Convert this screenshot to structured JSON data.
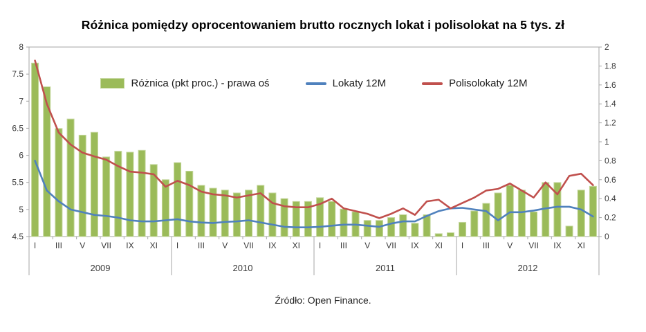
{
  "source": "Źródło: Open Finance.",
  "colors": {
    "bar_fill": "#9BBB59",
    "bar_stroke": "#C3D69B",
    "line_deposits": "#4F81BD",
    "line_policy": "#C0504D",
    "axis_line": "#A6A6A6",
    "text": "#3a3a3a"
  },
  "chart_data": {
    "type": "bar",
    "title": "Różnica pomiędzy oprocentowaniem brutto rocznych lokat i polisolokat na 5 tys. zł",
    "years": [
      "2009",
      "2010",
      "2011",
      "2012"
    ],
    "month_tick_labels": [
      "I",
      "III",
      "V",
      "VII",
      "IX",
      "XI"
    ],
    "legend_position": "top-inside",
    "grid": false,
    "left_axis": {
      "min": 4.5,
      "max": 8,
      "step": 0.5,
      "tick_labels": [
        "4.5",
        "5",
        "5.5",
        "6",
        "6.5",
        "7",
        "7.5",
        "8"
      ]
    },
    "right_axis": {
      "min": 0,
      "max": 2,
      "step": 0.2,
      "tick_labels": [
        "0",
        "0.2",
        "0.4",
        "0.6",
        "0.8",
        "1",
        "1.2",
        "1.4",
        "1.6",
        "1.8",
        "2"
      ]
    },
    "series": [
      {
        "name": "Różnica (pkt proc.) - prawa oś",
        "type": "bar",
        "axis": "right",
        "color": "#9BBB59",
        "values": [
          1.83,
          1.58,
          1.14,
          1.24,
          1.07,
          1.1,
          0.84,
          0.9,
          0.89,
          0.91,
          0.76,
          0.6,
          0.78,
          0.69,
          0.54,
          0.51,
          0.49,
          0.46,
          0.49,
          0.54,
          0.46,
          0.4,
          0.37,
          0.37,
          0.41,
          0.37,
          0.29,
          0.26,
          0.17,
          0.17,
          0.2,
          0.23,
          0.14,
          0.23,
          0.03,
          0.04,
          0.15,
          0.27,
          0.35,
          0.46,
          0.54,
          0.49,
          0.26,
          0.57,
          0.57,
          0.11,
          0.49,
          0.53
        ]
      },
      {
        "name": "Lokaty 12M",
        "type": "line",
        "axis": "left",
        "color": "#4F81BD",
        "values": [
          5.9,
          5.35,
          5.15,
          5.0,
          4.95,
          4.9,
          4.88,
          4.85,
          4.8,
          4.78,
          4.78,
          4.8,
          4.82,
          4.78,
          4.76,
          4.75,
          4.77,
          4.78,
          4.8,
          4.76,
          4.72,
          4.68,
          4.67,
          4.67,
          4.68,
          4.7,
          4.72,
          4.72,
          4.7,
          4.68,
          4.74,
          4.78,
          4.78,
          4.88,
          4.97,
          5.02,
          5.03,
          5.0,
          4.97,
          4.8,
          4.95,
          4.95,
          4.98,
          5.02,
          5.05,
          5.05,
          5.0,
          4.87
        ]
      },
      {
        "name": "Polisolokaty 12M",
        "type": "line",
        "axis": "left",
        "color": "#C0504D",
        "values": [
          7.75,
          6.95,
          6.42,
          6.2,
          6.05,
          5.98,
          5.92,
          5.8,
          5.7,
          5.68,
          5.65,
          5.42,
          5.53,
          5.45,
          5.33,
          5.28,
          5.26,
          5.22,
          5.26,
          5.3,
          5.12,
          5.06,
          5.04,
          5.04,
          5.1,
          5.2,
          5.02,
          4.97,
          4.92,
          4.84,
          4.92,
          5.02,
          4.9,
          5.15,
          5.18,
          5.02,
          5.12,
          5.22,
          5.35,
          5.38,
          5.48,
          5.35,
          5.22,
          5.5,
          5.28,
          5.62,
          5.66,
          5.45
        ]
      }
    ]
  }
}
